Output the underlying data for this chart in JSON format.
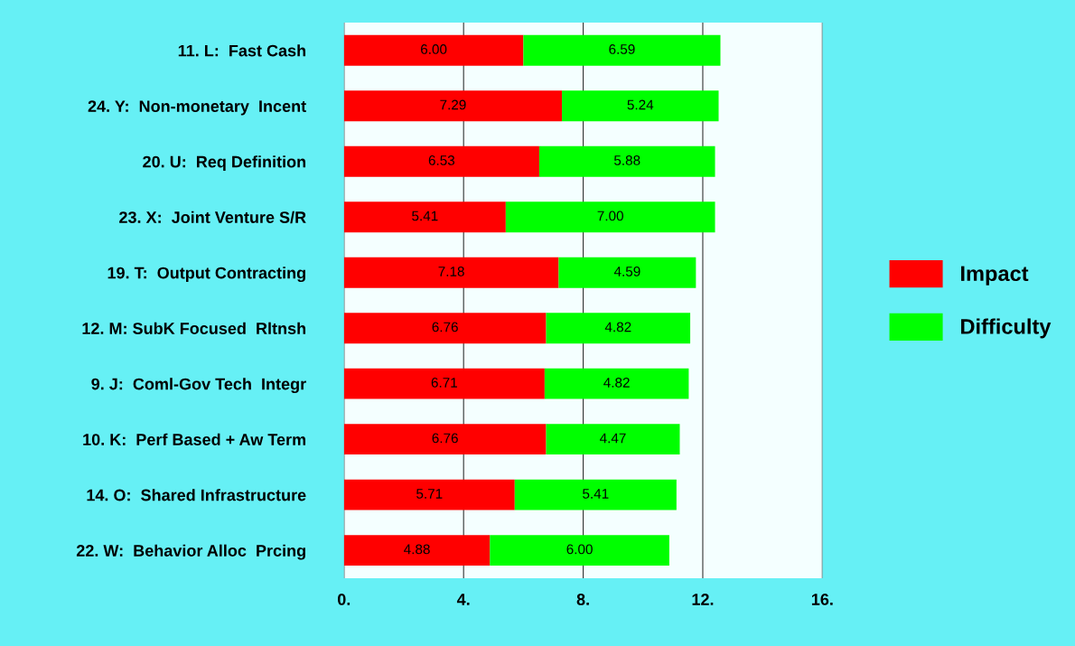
{
  "chart_data": {
    "type": "bar",
    "orientation": "horizontal",
    "stacked": true,
    "categories": [
      "11. L:  Fast Cash",
      "24. Y:  Non-monetary  Incent",
      "20. U:  Req Definition",
      "23. X:  Joint Venture S/R",
      "19. T:  Output Contracting",
      "12. M: SubK Focused  Rltnsh",
      "9. J:  Coml-Gov Tech  Integr",
      "10. K:  Perf Based + Aw Term",
      "14. O:  Shared Infrastructure",
      "22. W:  Behavior Alloc  Prcing"
    ],
    "series": [
      {
        "name": "Impact",
        "color": "#ff0000",
        "values": [
          6.0,
          7.29,
          6.53,
          5.41,
          7.18,
          6.76,
          6.71,
          6.76,
          5.71,
          4.88
        ],
        "value_labels": [
          "6.00",
          "7.29",
          "6.53",
          "5.41",
          "7.18",
          "6.76",
          "6.71",
          "6.76",
          "5.71",
          "4.88"
        ]
      },
      {
        "name": "Difficulty",
        "color": "#00ff00",
        "values": [
          6.59,
          5.24,
          5.88,
          7.0,
          4.59,
          4.82,
          4.82,
          4.47,
          5.41,
          6.0
        ],
        "value_labels": [
          "6.59",
          "5.24",
          "5.88",
          "7.00",
          "4.59",
          "4.82",
          "4.82",
          "4.47",
          "5.41",
          "6.00"
        ]
      }
    ],
    "xlim": [
      0,
      16
    ],
    "xticks": [
      {
        "value": 0,
        "label": "0."
      },
      {
        "value": 4,
        "label": "4."
      },
      {
        "value": 8,
        "label": "8."
      },
      {
        "value": 12,
        "label": "12."
      },
      {
        "value": 16,
        "label": "16."
      }
    ],
    "grid": "x",
    "legend": "right"
  }
}
